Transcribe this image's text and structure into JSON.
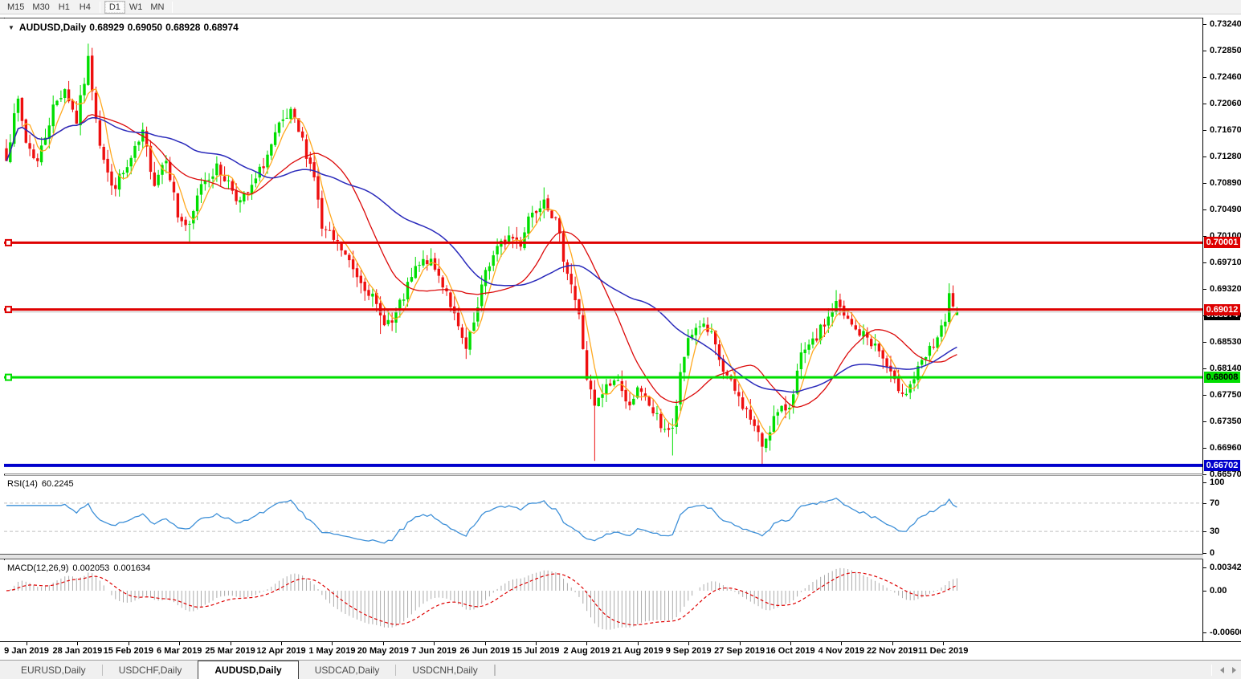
{
  "toolbar": {
    "timeframes": [
      "M15",
      "M30",
      "H1",
      "H4",
      "D1",
      "W1",
      "MN"
    ],
    "active_timeframe": "D1",
    "separators_after": [
      3,
      6
    ]
  },
  "header": {
    "symbol": "AUDUSD,Daily",
    "open": "0.68929",
    "high": "0.69050",
    "low": "0.68928",
    "close": "0.68974",
    "collapse_icon": "triangle-down"
  },
  "price_axis": {
    "ticks": [
      "0.73240",
      "0.72850",
      "0.72460",
      "0.72060",
      "0.71670",
      "0.71280",
      "0.70890",
      "0.70490",
      "0.70100",
      "0.69710",
      "0.69320",
      "0.68920",
      "0.68530",
      "0.68140",
      "0.67750",
      "0.67350",
      "0.66960",
      "0.66570"
    ],
    "badges": [
      {
        "text": "0.70001",
        "bg": "#DE0000",
        "fg": "#FFFFFF",
        "price": 0.70001,
        "kind": "hline-label"
      },
      {
        "text": "0.69012",
        "bg": "#DE0000",
        "fg": "#FFFFFF",
        "price": 0.69012,
        "kind": "hline-label"
      },
      {
        "text": "0.68974",
        "bg": "#000000",
        "fg": "#FFFFFF",
        "price": 0.68974,
        "kind": "current-price"
      },
      {
        "text": "0.68008",
        "bg": "#00DE00",
        "fg": "#000000",
        "price": 0.68008,
        "kind": "hline-label"
      },
      {
        "text": "0.66702",
        "bg": "#0000CC",
        "fg": "#FFFFFF",
        "price": 0.66702,
        "kind": "hline-label"
      }
    ]
  },
  "rsi_panel": {
    "name": "RSI(14)",
    "value": "60.2245",
    "axis_ticks": [
      "100",
      "70",
      "30",
      "0"
    ],
    "guide_levels": [
      70,
      30
    ]
  },
  "macd_panel": {
    "name": "MACD(12,26,9)",
    "main_value": "0.002053",
    "signal_value": "0.001634",
    "axis_ticks": [
      "0.003421",
      "0.00",
      "-0.006069"
    ]
  },
  "date_axis": {
    "labels": [
      "9 Jan 2019",
      "28 Jan 2019",
      "15 Feb 2019",
      "6 Mar 2019",
      "25 Mar 2019",
      "12 Apr 2019",
      "1 May 2019",
      "20 May 2019",
      "7 Jun 2019",
      "26 Jun 2019",
      "15 Jul 2019",
      "2 Aug 2019",
      "21 Aug 2019",
      "9 Sep 2019",
      "27 Sep 2019",
      "16 Oct 2019",
      "4 Nov 2019",
      "22 Nov 2019",
      "11 Dec 2019"
    ]
  },
  "tab_bar": {
    "tabs": [
      "EURUSD,Daily",
      "USDCHF,Daily",
      "AUDUSD,Daily",
      "USDCAD,Daily",
      "USDCNH,Daily"
    ],
    "active_index": 2
  },
  "chart_data": {
    "type": "candlestick",
    "symbol": "AUDUSD",
    "timeframe": "Daily",
    "bars": 245,
    "price_axis_top": 0.7324,
    "price_axis_bottom": 0.6657,
    "last_bar": {
      "open": 0.68929,
      "high": 0.6905,
      "low": 0.68928,
      "close": 0.68974
    },
    "current_price": 0.68974,
    "noise": 0.0009,
    "close_keyframes": [
      [
        0,
        0.713
      ],
      [
        3,
        0.721
      ],
      [
        5,
        0.715
      ],
      [
        8,
        0.712
      ],
      [
        12,
        0.72
      ],
      [
        15,
        0.723
      ],
      [
        18,
        0.718
      ],
      [
        21,
        0.727
      ],
      [
        24,
        0.715
      ],
      [
        27,
        0.708
      ],
      [
        31,
        0.711
      ],
      [
        35,
        0.716
      ],
      [
        38,
        0.709
      ],
      [
        41,
        0.713
      ],
      [
        44,
        0.704
      ],
      [
        47,
        0.702
      ],
      [
        50,
        0.709
      ],
      [
        54,
        0.711
      ],
      [
        57,
        0.709
      ],
      [
        60,
        0.706
      ],
      [
        63,
        0.708
      ],
      [
        67,
        0.713
      ],
      [
        70,
        0.717
      ],
      [
        73,
        0.719
      ],
      [
        76,
        0.715
      ],
      [
        79,
        0.71
      ],
      [
        81,
        0.702
      ],
      [
        83,
        0.701
      ],
      [
        86,
        0.699
      ],
      [
        89,
        0.696
      ],
      [
        93,
        0.693
      ],
      [
        96,
        0.689
      ],
      [
        99,
        0.688
      ],
      [
        102,
        0.692
      ],
      [
        105,
        0.696
      ],
      [
        108,
        0.6975
      ],
      [
        110,
        0.696
      ],
      [
        113,
        0.693
      ],
      [
        116,
        0.687
      ],
      [
        118,
        0.684
      ],
      [
        121,
        0.69
      ],
      [
        123,
        0.696
      ],
      [
        126,
        0.699
      ],
      [
        129,
        0.701
      ],
      [
        132,
        0.7
      ],
      [
        134,
        0.704
      ],
      [
        136,
        0.705
      ],
      [
        138,
        0.707
      ],
      [
        141,
        0.703
      ],
      [
        143,
        0.698
      ],
      [
        145,
        0.694
      ],
      [
        147,
        0.689
      ],
      [
        149,
        0.68
      ],
      [
        151,
        0.6755
      ],
      [
        154,
        0.6785
      ],
      [
        157,
        0.68
      ],
      [
        159,
        0.676
      ],
      [
        162,
        0.678
      ],
      [
        165,
        0.676
      ],
      [
        168,
        0.673
      ],
      [
        171,
        0.672
      ],
      [
        173,
        0.68
      ],
      [
        175,
        0.686
      ],
      [
        178,
        0.688
      ],
      [
        181,
        0.686
      ],
      [
        184,
        0.681
      ],
      [
        188,
        0.677
      ],
      [
        191,
        0.674
      ],
      [
        194,
        0.67
      ],
      [
        197,
        0.674
      ],
      [
        201,
        0.676
      ],
      [
        204,
        0.683
      ],
      [
        207,
        0.685
      ],
      [
        210,
        0.688
      ],
      [
        213,
        0.691
      ],
      [
        215,
        0.689
      ],
      [
        218,
        0.687
      ],
      [
        221,
        0.686
      ],
      [
        224,
        0.684
      ],
      [
        228,
        0.679
      ],
      [
        231,
        0.678
      ],
      [
        234,
        0.681
      ],
      [
        237,
        0.684
      ],
      [
        239,
        0.686
      ],
      [
        241,
        0.688
      ],
      [
        242,
        0.692
      ],
      [
        244,
        0.68974
      ]
    ],
    "wick_spikes": [
      {
        "i": 21,
        "high": 0.7295
      },
      {
        "i": 47,
        "low": 0.7
      },
      {
        "i": 96,
        "low": 0.6865
      },
      {
        "i": 118,
        "low": 0.6828
      },
      {
        "i": 138,
        "high": 0.7082
      },
      {
        "i": 151,
        "low": 0.6677
      },
      {
        "i": 171,
        "low": 0.6685
      },
      {
        "i": 194,
        "low": 0.667
      },
      {
        "i": 213,
        "high": 0.693
      },
      {
        "i": 242,
        "high": 0.694
      }
    ],
    "horizontal_lines": [
      {
        "price": 0.70001,
        "color": "#DE0000",
        "width": 3,
        "handle": true
      },
      {
        "price": 0.69012,
        "color": "#DE0000",
        "width": 3,
        "handle": true
      },
      {
        "price": 0.68008,
        "color": "#00DE00",
        "width": 3,
        "handle": true
      },
      {
        "price": 0.66702,
        "color": "#0000CC",
        "width": 4,
        "handle": false
      }
    ],
    "moving_averages": [
      {
        "window": 5,
        "color": "#FFA920",
        "width": 1.3
      },
      {
        "window": 20,
        "color": "#DC0A0A",
        "width": 1.3
      },
      {
        "window": 45,
        "color": "#2A2ABB",
        "width": 1.5
      }
    ],
    "indicators": {
      "rsi": {
        "period": 14,
        "last": 60.2245,
        "line_color": "#3E90D8",
        "level_color": "#BFBFBF"
      },
      "macd": {
        "fast": 12,
        "slow": 26,
        "signal": 9,
        "last_main": 0.002053,
        "last_signal": 0.001634,
        "hist_color": "#ABABAB",
        "signal_color": "#DE0000"
      }
    },
    "colors": {
      "bull": "#00DE00",
      "bear": "#EE0F0F",
      "bid_line": "#BFBFBF",
      "background": "#FFFFFF"
    }
  }
}
